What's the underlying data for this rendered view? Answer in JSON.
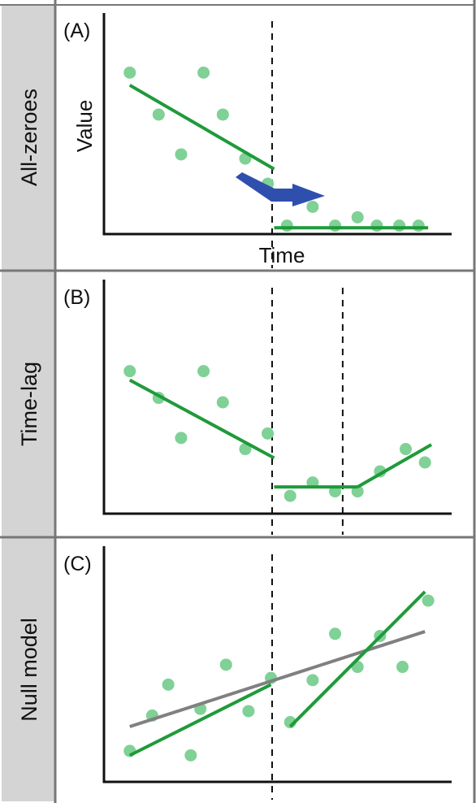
{
  "colors": {
    "sidebar": "#d4d4d4",
    "border": "#777777",
    "axis": "#111111",
    "points": "#7fd196",
    "fit_line": "#1f9a3a",
    "null_line": "#808080",
    "arrow": "#2f4fae",
    "breakpoint": "#111111"
  },
  "panels": [
    {
      "letter": "(A)",
      "side_label": "All-zeroes",
      "ylabel": "Value",
      "xlabel": "Time",
      "breakpoints": [
        0.5
      ],
      "points": [
        [
          0.05,
          0.77
        ],
        [
          0.14,
          0.57
        ],
        [
          0.21,
          0.38
        ],
        [
          0.28,
          0.77
        ],
        [
          0.34,
          0.57
        ],
        [
          0.41,
          0.36
        ],
        [
          0.48,
          0.24
        ],
        [
          0.54,
          0.04
        ],
        [
          0.62,
          0.13
        ],
        [
          0.69,
          0.04
        ],
        [
          0.76,
          0.08
        ],
        [
          0.82,
          0.04
        ],
        [
          0.89,
          0.04
        ],
        [
          0.95,
          0.04
        ]
      ],
      "segments": [
        {
          "kind": "fit",
          "from": [
            0.05,
            0.71
          ],
          "to": [
            0.5,
            0.31
          ]
        },
        {
          "kind": "fit",
          "from": [
            0.5,
            0.03
          ],
          "to": [
            0.98,
            0.03
          ]
        }
      ],
      "arrow": true
    },
    {
      "letter": "(B)",
      "side_label": "Time-lag",
      "ylabel": "",
      "xlabel": "",
      "breakpoints": [
        0.5,
        0.72
      ],
      "points": [
        [
          0.05,
          0.64
        ],
        [
          0.14,
          0.52
        ],
        [
          0.21,
          0.34
        ],
        [
          0.28,
          0.64
        ],
        [
          0.34,
          0.5
        ],
        [
          0.41,
          0.29
        ],
        [
          0.48,
          0.36
        ],
        [
          0.55,
          0.08
        ],
        [
          0.62,
          0.14
        ],
        [
          0.69,
          0.1
        ],
        [
          0.76,
          0.1
        ],
        [
          0.83,
          0.19
        ],
        [
          0.91,
          0.29
        ],
        [
          0.97,
          0.23
        ]
      ],
      "segments": [
        {
          "kind": "fit",
          "from": [
            0.05,
            0.6
          ],
          "to": [
            0.5,
            0.25
          ]
        },
        {
          "kind": "fit",
          "from": [
            0.5,
            0.12
          ],
          "to": [
            0.76,
            0.12
          ]
        },
        {
          "kind": "fit",
          "from": [
            0.76,
            0.12
          ],
          "to": [
            0.99,
            0.31
          ]
        }
      ],
      "arrow": false
    },
    {
      "letter": "(C)",
      "side_label": "Null model",
      "ylabel": "",
      "xlabel": "",
      "breakpoints": [
        0.5
      ],
      "points": [
        [
          0.05,
          0.14
        ],
        [
          0.12,
          0.3
        ],
        [
          0.17,
          0.44
        ],
        [
          0.24,
          0.12
        ],
        [
          0.27,
          0.33
        ],
        [
          0.35,
          0.53
        ],
        [
          0.42,
          0.32
        ],
        [
          0.49,
          0.47
        ],
        [
          0.55,
          0.27
        ],
        [
          0.62,
          0.46
        ],
        [
          0.69,
          0.67
        ],
        [
          0.76,
          0.52
        ],
        [
          0.83,
          0.66
        ],
        [
          0.9,
          0.52
        ],
        [
          0.98,
          0.82
        ]
      ],
      "segments": [
        {
          "kind": "null",
          "from": [
            0.05,
            0.25
          ],
          "to": [
            0.97,
            0.68
          ]
        },
        {
          "kind": "fit",
          "from": [
            0.05,
            0.12
          ],
          "to": [
            0.49,
            0.44
          ]
        },
        {
          "kind": "fit",
          "from": [
            0.55,
            0.25
          ],
          "to": [
            0.97,
            0.86
          ]
        }
      ],
      "arrow": false
    }
  ]
}
